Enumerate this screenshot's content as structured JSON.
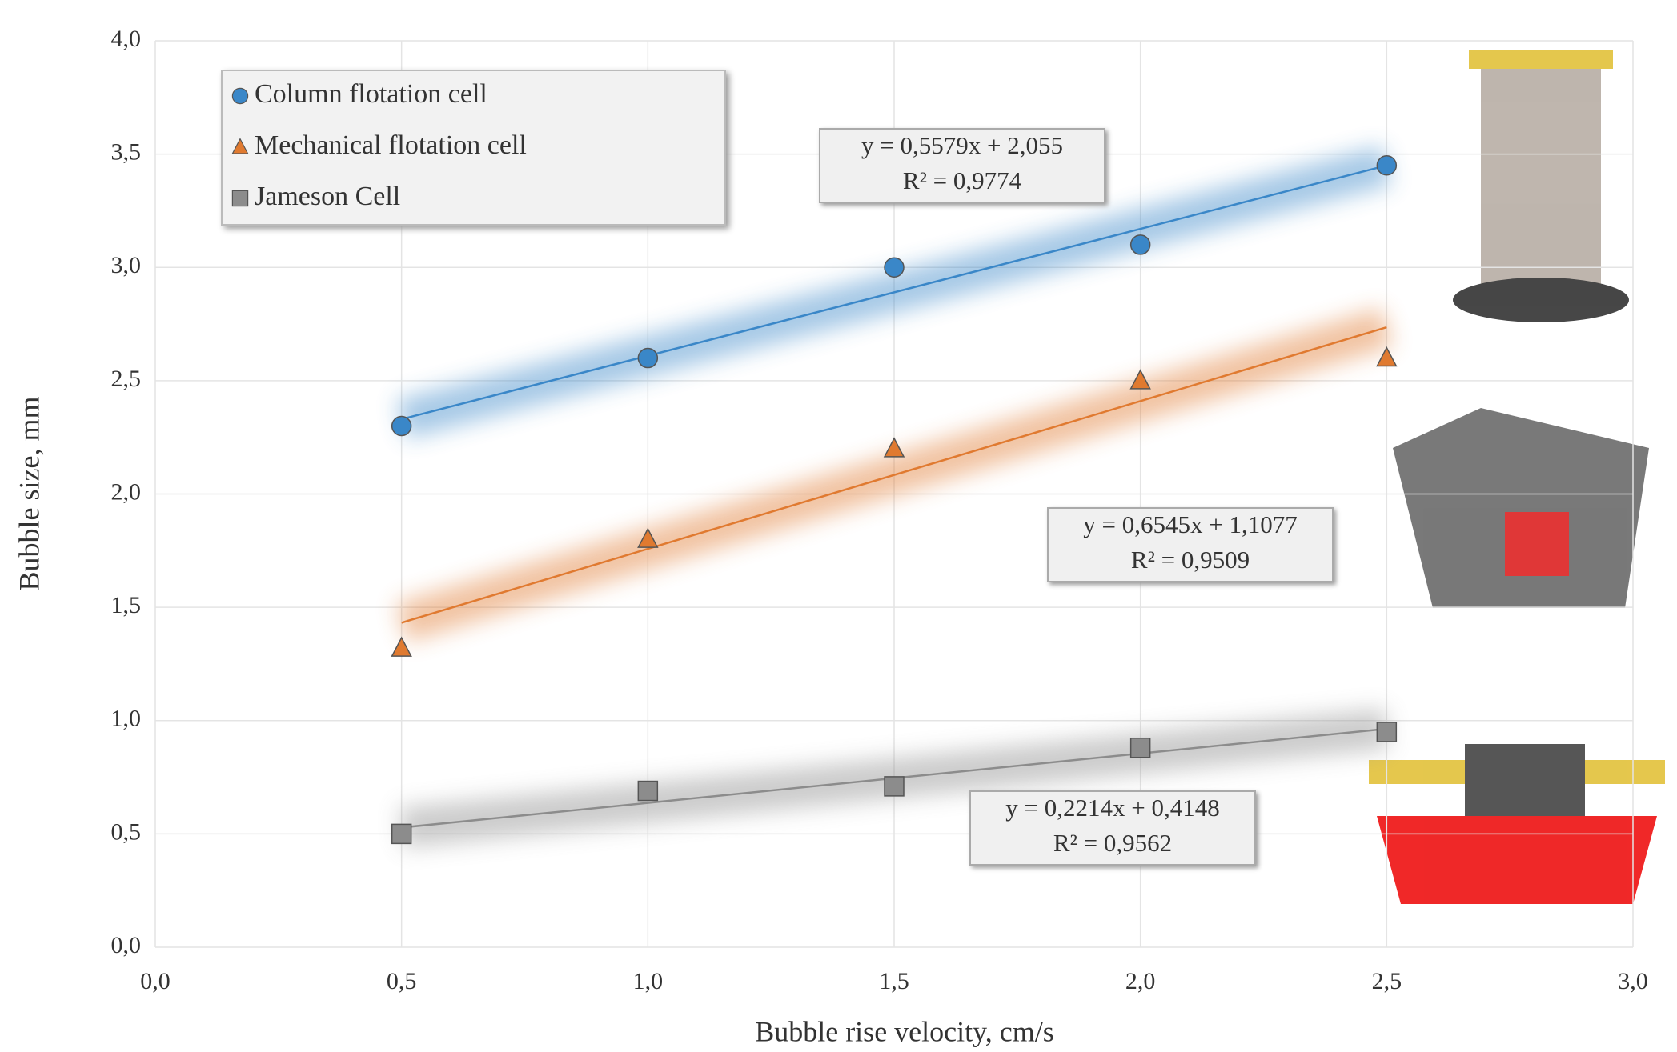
{
  "chart_data": {
    "type": "scatter",
    "x_label": "Bubble rise velocity, cm/s",
    "y_label": "Bubble size, mm",
    "x": [
      0.5,
      1.0,
      1.5,
      2.0,
      2.5
    ],
    "series": [
      {
        "name": "Column flotation cell",
        "color": "#3a87c8",
        "marker": "circle",
        "values": [
          2.3,
          2.6,
          3.0,
          3.1,
          3.45
        ]
      },
      {
        "name": "Mechanical flotation cell",
        "color": "#e07a30",
        "marker": "triangle",
        "values": [
          1.32,
          1.8,
          2.2,
          2.5,
          2.6
        ]
      },
      {
        "name": "Jameson Cell",
        "color": "#8c8c8c",
        "marker": "square",
        "values": [
          0.5,
          0.69,
          0.71,
          0.88,
          0.95
        ]
      }
    ],
    "annotations": [
      {
        "lines": [
          "y = 0,5579x + 2,055",
          "R² = 0,9774"
        ]
      },
      {
        "lines": [
          "y = 0,6545x + 1,1077",
          "R² = 0,9509"
        ]
      },
      {
        "lines": [
          "y = 0,2214x + 0,4148",
          "R² = 0,9562"
        ]
      }
    ],
    "xlim": [
      0,
      3
    ],
    "ylim": [
      0,
      4
    ],
    "xticks": [
      {
        "value": 0,
        "label": "0,0"
      },
      {
        "value": 0.5,
        "label": "0,5"
      },
      {
        "value": 1,
        "label": "1,0"
      },
      {
        "value": 1.5,
        "label": "1,5"
      },
      {
        "value": 2,
        "label": "2,0"
      },
      {
        "value": 2.5,
        "label": "2,5"
      },
      {
        "value": 3,
        "label": "3,0"
      }
    ],
    "yticks": [
      {
        "value": 0,
        "label": "0,0"
      },
      {
        "value": 0.5,
        "label": "0,5"
      },
      {
        "value": 1,
        "label": "1,0"
      },
      {
        "value": 1.5,
        "label": "1,5"
      },
      {
        "value": 2,
        "label": "2,0"
      },
      {
        "value": 2.5,
        "label": "2,5"
      },
      {
        "value": 3,
        "label": "3,0"
      },
      {
        "value": 3.5,
        "label": "3,5"
      },
      {
        "value": 4,
        "label": "4,0"
      }
    ],
    "grid": true,
    "trendlines": true,
    "legend": "upper left"
  }
}
